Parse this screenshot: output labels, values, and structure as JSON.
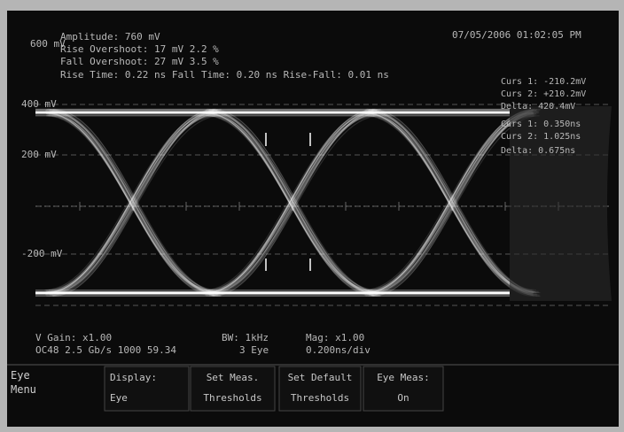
{
  "readout": {
    "amplitude": "Amplitude:   760 mV",
    "rise_overshoot": "Rise Overshoot: 17 mV  2.2 %",
    "fall_overshoot": "Fall Overshoot: 27 mV  3.5 %",
    "timing": "Rise Time:  0.22 ns    Fall Time:   0.20 ns    Rise-Fall:  0.01 ns"
  },
  "timestamp": "07/05/2006 01:02:05 PM",
  "scale_labels": [
    "600 mV",
    "400 mV",
    "200 mV",
    "-200 mV"
  ],
  "cursors": [
    "Curs 1: -210.2mV",
    "Curs 2: +210.2mV",
    "Delta: 420.4mV",
    "Curs 1: 0.350ns",
    "Curs 2: 1.025ns",
    "Delta: 0.675ns"
  ],
  "status": {
    "v_gain": "V Gain:  x1.00",
    "bw": "BW: 1kHz",
    "mag": "Mag:  x1.00",
    "standard": "OC48 2.5 Gb/s 1000 59.34",
    "eye": "3 Eye",
    "timebase": "0.200ns/div"
  },
  "menu": {
    "title": "Eye Menu",
    "buttons": [
      {
        "label": "Display:",
        "value": "Eye"
      },
      {
        "label": "Set Meas.",
        "value": "Thresholds"
      },
      {
        "label": "Set Default",
        "value": "Thresholds"
      },
      {
        "label": "Eye Meas:",
        "value": "On"
      }
    ]
  }
}
